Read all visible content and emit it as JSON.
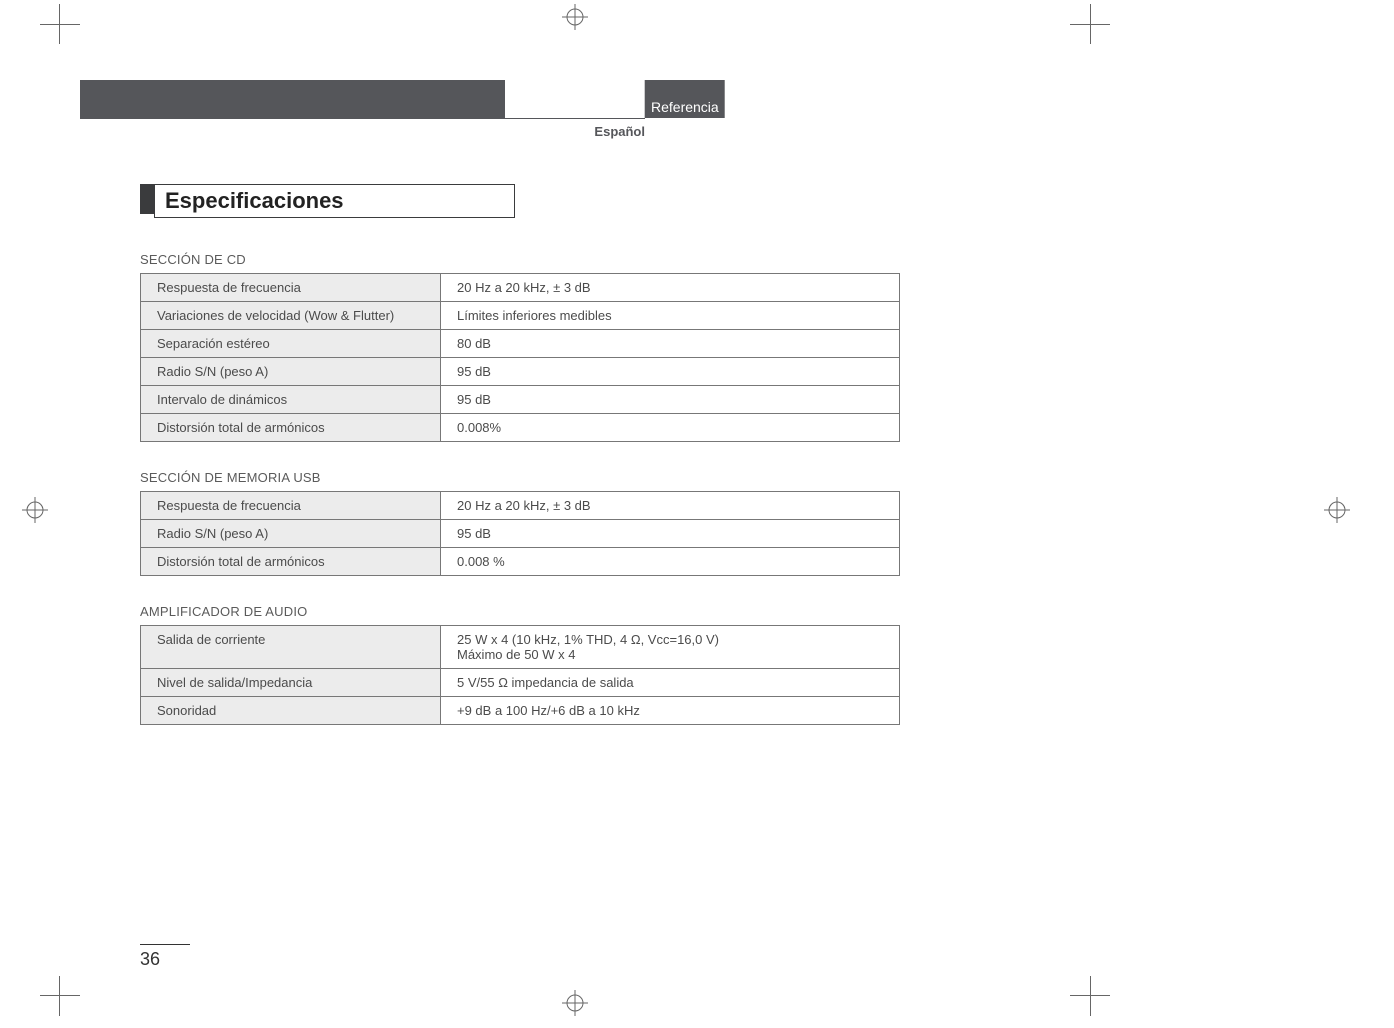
{
  "header": {
    "referenceTab": "Referencia",
    "language": "Español"
  },
  "title": "Especificaciones",
  "sections": [
    {
      "label": "SECCIÓN DE CD",
      "rows": [
        {
          "k": "Respuesta de frecuencia",
          "v": "20 Hz a 20 kHz, ± 3 dB"
        },
        {
          "k": "Variaciones de velocidad (Wow & Flutter)",
          "v": "Límites inferiores medibles"
        },
        {
          "k": "Separación estéreo",
          "v": "80 dB"
        },
        {
          "k": "Radio S/N (peso A)",
          "v": "95 dB"
        },
        {
          "k": "Intervalo de dinámicos",
          "v": "95 dB"
        },
        {
          "k": "Distorsión total de armónicos",
          "v": "0.008%"
        }
      ]
    },
    {
      "label": "SECCIÓN DE MEMORIA USB",
      "rows": [
        {
          "k": "Respuesta de frecuencia",
          "v": "20 Hz a 20 kHz, ± 3 dB"
        },
        {
          "k": "Radio S/N (peso A)",
          "v": "95 dB"
        },
        {
          "k": "Distorsión total de armónicos",
          "v": "0.008 %"
        }
      ]
    },
    {
      "label": "AMPLIFICADOR DE AUDIO",
      "rows": [
        {
          "k": "Salida de corriente",
          "v": "25 W x 4 (10 kHz, 1% THD, 4 Ω, Vcc=16,0 V)\nMáximo de 50 W x 4"
        },
        {
          "k": "Nivel de salida/Impedancia",
          "v": "5 V/55 Ω impedancia de salida"
        },
        {
          "k": "Sonoridad",
          "v": "+9 dB a 100 Hz/+6 dB a 10 kHz"
        }
      ]
    }
  ],
  "pageNumber": "36",
  "colors": {
    "band": "#55565a",
    "rowShade": "#ececec",
    "border": "#777777",
    "text": "#4b4b4b"
  }
}
